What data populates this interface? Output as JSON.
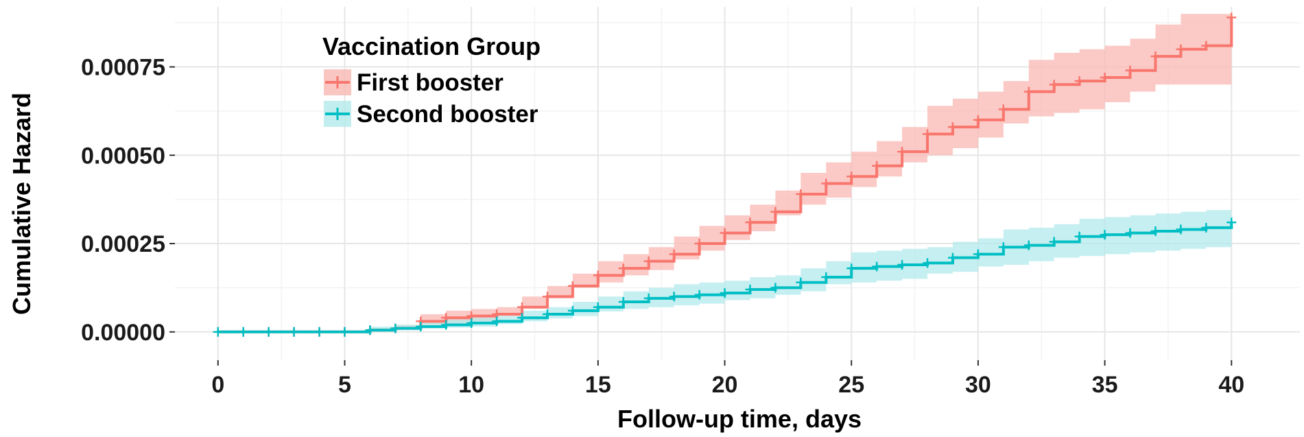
{
  "chart_data": {
    "type": "line",
    "title": "",
    "xlabel": "Follow-up time, days",
    "ylabel": "Cumulative Hazard",
    "xlim": [
      -1.7,
      42.7
    ],
    "ylim": [
      -8e-05,
      0.00092
    ],
    "x_ticks": [
      0,
      5,
      10,
      15,
      20,
      25,
      30,
      35,
      40
    ],
    "x_tick_labels": [
      "0",
      "5",
      "10",
      "15",
      "20",
      "25",
      "30",
      "35",
      "40"
    ],
    "y_ticks": [
      0,
      0.00025,
      0.0005,
      0.00075
    ],
    "y_tick_labels": [
      "0.00000",
      "0.00025",
      "0.00050",
      "0.00075"
    ],
    "grid": true,
    "legend_title": "Vaccination Group",
    "legend_position": "top-left",
    "series": [
      {
        "name": "First booster",
        "color": "#f8766d",
        "band_color": "#f9b8b3",
        "x": [
          0,
          1,
          2,
          3,
          4,
          5,
          6,
          7,
          8,
          9,
          10,
          11,
          12,
          13,
          14,
          15,
          16,
          17,
          18,
          19,
          20,
          21,
          22,
          23,
          24,
          25,
          26,
          27,
          28,
          29,
          30,
          31,
          32,
          33,
          34,
          35,
          36,
          37,
          38,
          39,
          40
        ],
        "y": [
          0,
          0,
          0,
          0,
          0,
          0,
          5e-06,
          1e-05,
          3e-05,
          4e-05,
          4.5e-05,
          5e-05,
          7e-05,
          0.0001,
          0.00013,
          0.00016,
          0.00018,
          0.0002,
          0.00022,
          0.00025,
          0.00028,
          0.00031,
          0.00034,
          0.00039,
          0.00042,
          0.00044,
          0.00047,
          0.00051,
          0.00056,
          0.00058,
          0.0006,
          0.00063,
          0.00068,
          0.0007,
          0.00071,
          0.00072,
          0.00074,
          0.00078,
          0.0008,
          0.00081,
          0.00089
        ],
        "lower": [
          0,
          0,
          0,
          0,
          0,
          0,
          0,
          2e-06,
          1.2e-05,
          2e-05,
          2.5e-05,
          3e-05,
          4.5e-05,
          7e-05,
          9.5e-05,
          0.000125,
          0.00014,
          0.00016,
          0.000175,
          0.000205,
          0.00023,
          0.00026,
          0.000285,
          0.00033,
          0.00036,
          0.00038,
          0.00041,
          0.00044,
          0.00048,
          0.0005,
          0.00052,
          0.00055,
          0.00059,
          0.00061,
          0.00062,
          0.00063,
          0.00065,
          0.00068,
          0.0007,
          0.0007,
          0.0007
        ],
        "upper": [
          0,
          0,
          0,
          0,
          0,
          0,
          1e-05,
          2e-05,
          5e-05,
          6e-05,
          6.5e-05,
          7e-05,
          0.0001,
          0.00013,
          0.000165,
          0.0002,
          0.00022,
          0.00024,
          0.00027,
          0.0003,
          0.00033,
          0.00036,
          0.0004,
          0.00045,
          0.00048,
          0.00051,
          0.00054,
          0.00058,
          0.00064,
          0.00066,
          0.00068,
          0.00071,
          0.00077,
          0.00079,
          0.0008,
          0.00081,
          0.00083,
          0.00087,
          0.0009,
          0.0009,
          0.00091
        ]
      },
      {
        "name": "Second booster",
        "color": "#00bfc4",
        "band_color": "#b3eaec",
        "x": [
          0,
          1,
          2,
          3,
          4,
          5,
          6,
          7,
          8,
          9,
          10,
          11,
          12,
          13,
          14,
          15,
          16,
          17,
          18,
          19,
          20,
          21,
          22,
          23,
          24,
          25,
          26,
          27,
          28,
          29,
          30,
          31,
          32,
          33,
          34,
          35,
          36,
          37,
          38,
          39,
          40
        ],
        "y": [
          0,
          0,
          0,
          0,
          0,
          0,
          5e-06,
          1e-05,
          1.5e-05,
          2e-05,
          2.5e-05,
          3e-05,
          4e-05,
          5e-05,
          6e-05,
          7e-05,
          8.5e-05,
          9.5e-05,
          0.0001,
          0.000105,
          0.00011,
          0.00012,
          0.000125,
          0.00014,
          0.000155,
          0.00018,
          0.000185,
          0.00019,
          0.000195,
          0.00021,
          0.00022,
          0.00024,
          0.000245,
          0.000255,
          0.00027,
          0.000275,
          0.00028,
          0.000285,
          0.00029,
          0.000295,
          0.00031
        ],
        "lower": [
          0,
          0,
          0,
          0,
          0,
          0,
          0,
          0,
          5e-06,
          1e-05,
          1.2e-05,
          1.5e-05,
          2.2e-05,
          3e-05,
          3.8e-05,
          4.5e-05,
          5.8e-05,
          6.5e-05,
          7e-05,
          7.5e-05,
          8e-05,
          9e-05,
          9.5e-05,
          0.000105,
          0.000115,
          0.000135,
          0.00014,
          0.000145,
          0.00015,
          0.000165,
          0.00017,
          0.000185,
          0.00019,
          0.0002,
          0.00021,
          0.000215,
          0.00022,
          0.000225,
          0.00023,
          0.000235,
          0.00024
        ],
        "upper": [
          0,
          0,
          0,
          0,
          0,
          0,
          1.5e-05,
          2e-05,
          3e-05,
          3.5e-05,
          4e-05,
          4.5e-05,
          6e-05,
          7e-05,
          8.5e-05,
          0.0001,
          0.000115,
          0.000125,
          0.000135,
          0.00014,
          0.000145,
          0.000155,
          0.00016,
          0.00018,
          0.0002,
          0.000225,
          0.00023,
          0.000235,
          0.00024,
          0.000255,
          0.000265,
          0.00029,
          0.000295,
          0.000305,
          0.00032,
          0.000325,
          0.00033,
          0.000335,
          0.00034,
          0.000345,
          0.00036
        ]
      }
    ]
  }
}
